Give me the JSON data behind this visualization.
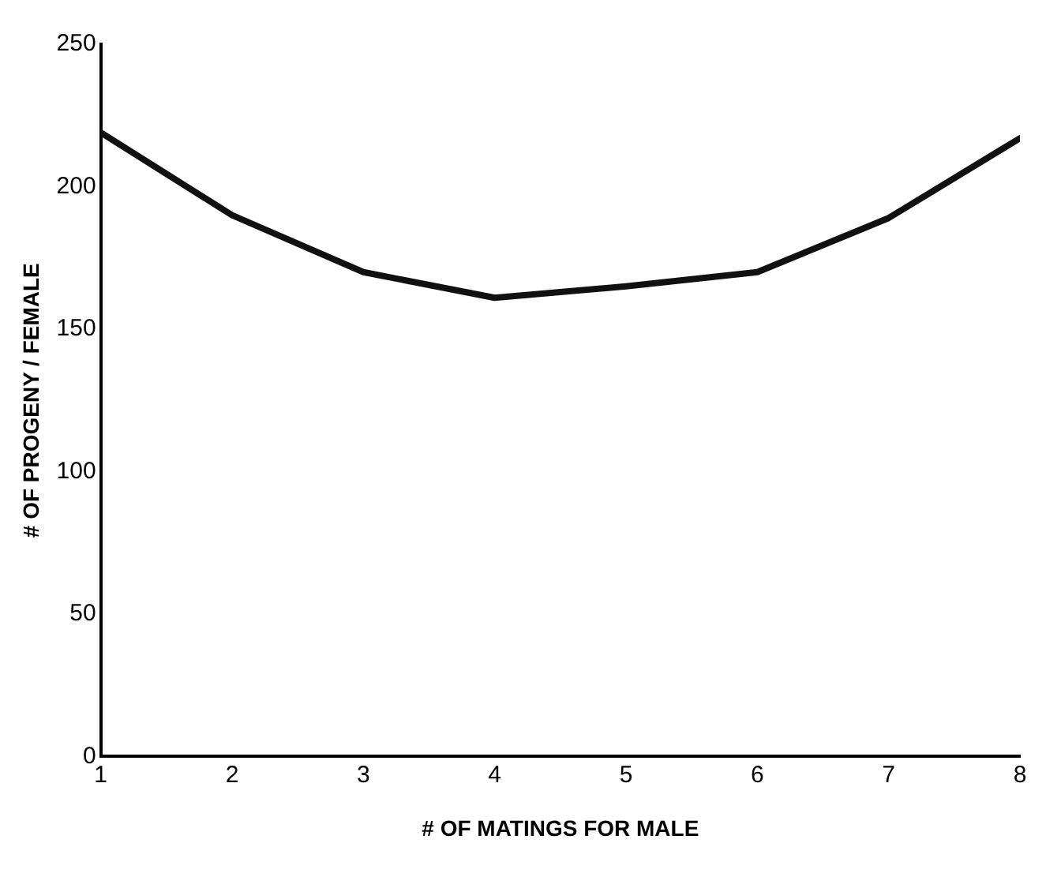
{
  "chart_data": {
    "type": "line",
    "xlabel": "# OF MATINGS FOR MALE",
    "ylabel": "# OF PROGENY / FEMALE",
    "x": [
      1,
      2,
      3,
      4,
      5,
      6,
      7,
      8
    ],
    "series": [
      {
        "color": "#111111",
        "values": [
          219,
          190,
          170,
          161,
          165,
          170,
          189,
          217
        ]
      }
    ],
    "xlim": [
      1,
      8
    ],
    "xticks": [
      1,
      2,
      3,
      4,
      5,
      6,
      7,
      8
    ],
    "ylim": [
      0,
      250
    ],
    "yticks": [
      0,
      50,
      100,
      150,
      200,
      250
    ],
    "grid": false,
    "legend": false,
    "marker": "none",
    "line_style": "solid"
  }
}
